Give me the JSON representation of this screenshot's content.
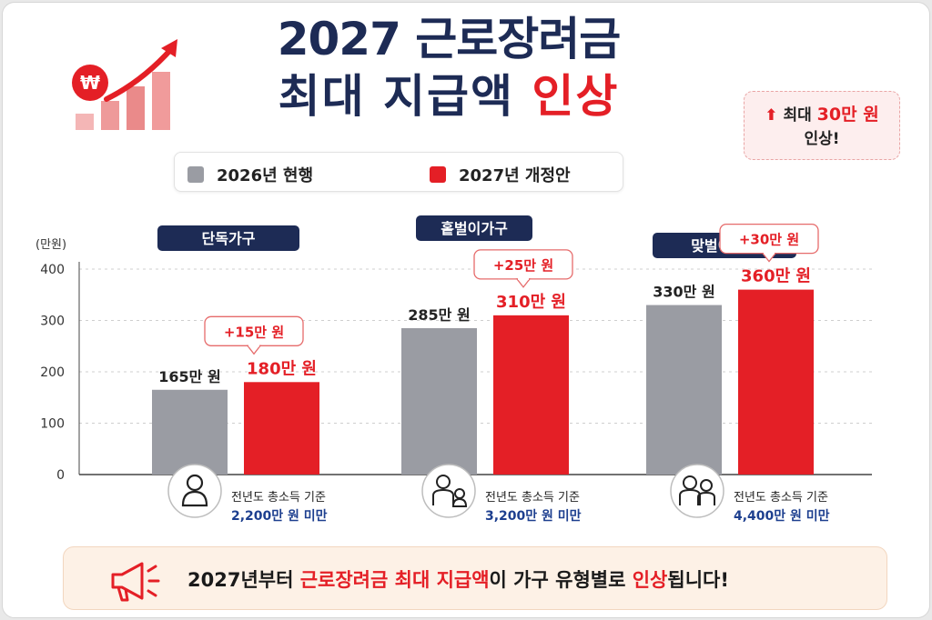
{
  "header": {
    "title_line1": "2027 근로장려금",
    "title_line2_main": "최대 지급액 ",
    "title_line2_highlight": "인상"
  },
  "callout": {
    "arrow_icon": "up-arrow-icon",
    "prefix": "최대 ",
    "amount": "30만 원",
    "suffix": "인상!"
  },
  "legend": [
    {
      "label": "2026년 현행",
      "color": "#9a9ca3"
    },
    {
      "label": "2027년 개정안",
      "color": "#e41f26"
    }
  ],
  "chart_data": {
    "type": "bar",
    "y_unit_label": "(만원)",
    "ylim": [
      0,
      400
    ],
    "y_ticks": [
      "0",
      "100",
      "200",
      "300",
      "400"
    ],
    "grid": true,
    "categories": [
      "단독가구",
      "홑벌이가구",
      "맞벌이가구"
    ],
    "series": [
      {
        "name": "2026년 현행",
        "values": [
          165,
          285,
          330
        ],
        "color": "#9a9ca3"
      },
      {
        "name": "2027년 개정안",
        "values": [
          180,
          310,
          360
        ],
        "color": "#e41f26"
      }
    ],
    "value_labels": {
      "2026": [
        "165만 원",
        "285만 원",
        "330만 원"
      ],
      "2027": [
        "180만 원",
        "310만 원",
        "360만 원"
      ]
    },
    "increase_labels": [
      "+15만 원",
      "+25만 원",
      "+30만 원"
    ],
    "criteria_line1": [
      "전년도 총소득 기준",
      "전년도 총소득 기준",
      "전년도 총소득 기준"
    ],
    "criteria_line2": [
      "2,200만 원 미만",
      "3,200만 원 미만",
      "4,400만 원 미만"
    ],
    "household_icons": [
      "single-person-icon",
      "parent-child-icon",
      "two-adults-icon"
    ]
  },
  "banner": {
    "icon": "megaphone-icon",
    "text_prefix": "2027년부터 ",
    "text_highlight": "근로장려금 최대 지급액",
    "text_middle": "이 가구 유형별로 ",
    "text_highlight2": "인상",
    "text_suffix": "됩니다!"
  },
  "colors": {
    "navy": "#1d2b55",
    "red": "#e41f26",
    "gray": "#9a9ca3"
  }
}
